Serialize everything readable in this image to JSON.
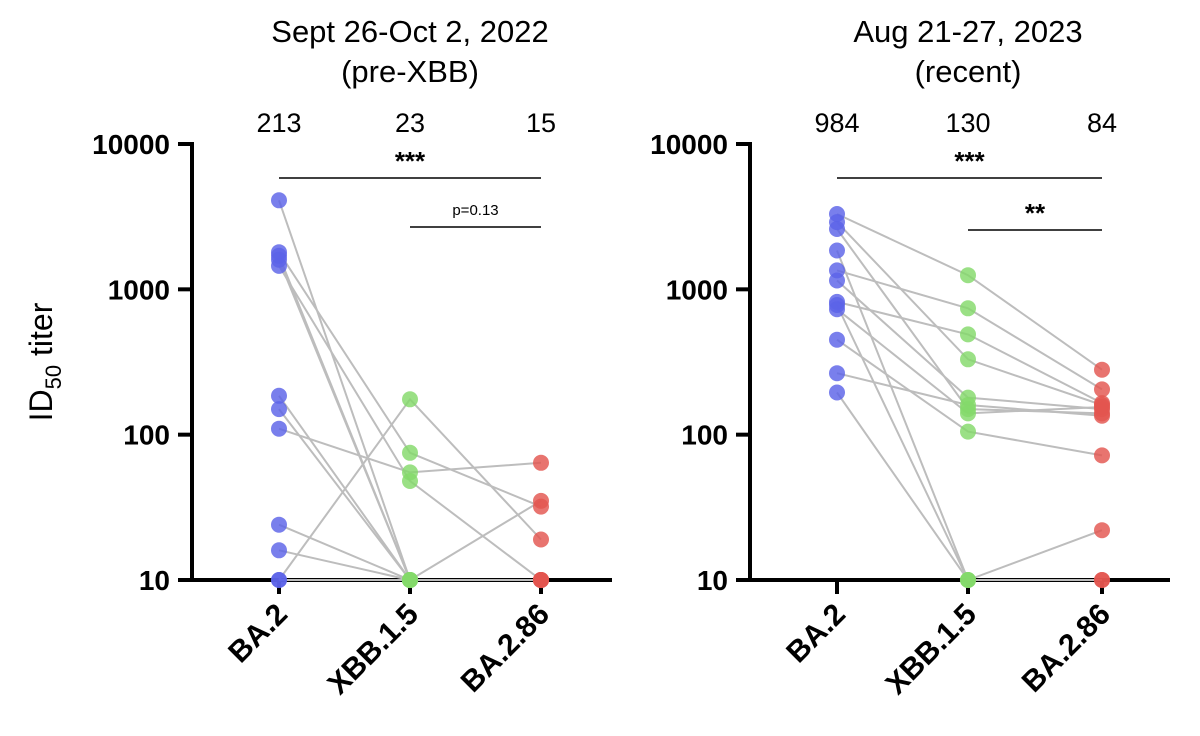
{
  "y_axis_label": "ID",
  "y_axis_label_subscript": "50",
  "y_axis_label_suffix": " titer",
  "colors": {
    "BA.2": "#5b63e8",
    "XBB.1.5": "#84d96a",
    "BA.2.86": "#e3564f",
    "connector": "#bdbdbd",
    "axis": "#000000"
  },
  "chart_data": [
    {
      "type": "scatter",
      "title_line1": "Sept 26-Oct 2, 2022",
      "title_line2": "(pre-XBB)",
      "categories": [
        "BA.2",
        "XBB.1.5",
        "BA.2.86"
      ],
      "geometric_means": [
        "213",
        "23",
        "15"
      ],
      "yscale": "log",
      "ylim": [
        10,
        10000
      ],
      "yticks": [
        10,
        100,
        1000,
        10000
      ],
      "ytick_labels": [
        "10",
        "100",
        "1000",
        "10000"
      ],
      "subjects": [
        [
          4100,
          10,
          35
        ],
        [
          1800,
          75,
          32
        ],
        [
          1700,
          10,
          10
        ],
        [
          1600,
          10,
          10
        ],
        [
          1450,
          48,
          10
        ],
        [
          185,
          10,
          10
        ],
        [
          150,
          10,
          10
        ],
        [
          110,
          55,
          64
        ],
        [
          24,
          10,
          10
        ],
        [
          16,
          10,
          10
        ],
        [
          10,
          175,
          19
        ],
        [
          10,
          10,
          10
        ]
      ],
      "significance": [
        {
          "from": "BA.2",
          "to": "BA.2.86",
          "label": "***",
          "style": "stars"
        },
        {
          "from": "XBB.1.5",
          "to": "BA.2.86",
          "label": "p=0.13",
          "style": "pvalue"
        }
      ]
    },
    {
      "type": "scatter",
      "title_line1": "Aug 21-27, 2023",
      "title_line2": "(recent)",
      "categories": [
        "BA.2",
        "XBB.1.5",
        "BA.2.86"
      ],
      "geometric_means": [
        "984",
        "130",
        "84"
      ],
      "yscale": "log",
      "ylim": [
        10,
        10000
      ],
      "yticks": [
        10,
        100,
        1000,
        10000
      ],
      "ytick_labels": [
        "10",
        "100",
        "1000",
        "10000"
      ],
      "subjects": [
        [
          3300,
          1250,
          280
        ],
        [
          2900,
          330,
          160
        ],
        [
          2600,
          150,
          140
        ],
        [
          1850,
          10,
          10
        ],
        [
          1350,
          740,
          205
        ],
        [
          1150,
          180,
          150
        ],
        [
          820,
          490,
          165
        ],
        [
          780,
          10,
          22
        ],
        [
          730,
          140,
          155
        ],
        [
          450,
          105,
          72
        ],
        [
          265,
          160,
          135
        ],
        [
          195,
          10,
          10
        ]
      ],
      "significance": [
        {
          "from": "BA.2",
          "to": "BA.2.86",
          "label": "***",
          "style": "stars"
        },
        {
          "from": "XBB.1.5",
          "to": "BA.2.86",
          "label": "**",
          "style": "stars"
        }
      ]
    }
  ]
}
